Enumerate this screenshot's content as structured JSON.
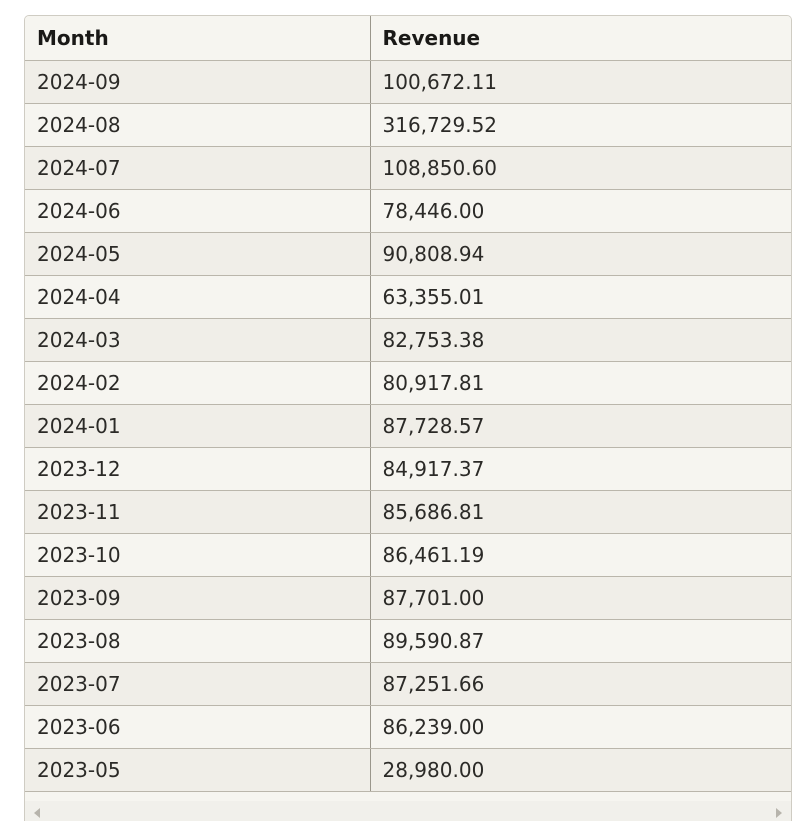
{
  "table": {
    "headers": [
      "Month",
      "Revenue"
    ],
    "rows": [
      [
        "2024-09",
        "100,672.11"
      ],
      [
        "2024-08",
        "316,729.52"
      ],
      [
        "2024-07",
        "108,850.60"
      ],
      [
        "2024-06",
        "78,446.00"
      ],
      [
        "2024-05",
        "90,808.94"
      ],
      [
        "2024-04",
        "63,355.01"
      ],
      [
        "2024-03",
        "82,753.38"
      ],
      [
        "2024-02",
        "80,917.81"
      ],
      [
        "2024-01",
        "87,728.57"
      ],
      [
        "2023-12",
        "84,917.37"
      ],
      [
        "2023-11",
        "85,686.81"
      ],
      [
        "2023-10",
        "86,461.19"
      ],
      [
        "2023-09",
        "87,701.00"
      ],
      [
        "2023-08",
        "89,590.87"
      ],
      [
        "2023-07",
        "87,251.66"
      ],
      [
        "2023-06",
        "86,239.00"
      ],
      [
        "2023-05",
        "28,980.00"
      ]
    ]
  },
  "scrollbar": {
    "left_icon": "scroll-left-arrow-icon",
    "right_icon": "scroll-right-arrow-icon"
  }
}
